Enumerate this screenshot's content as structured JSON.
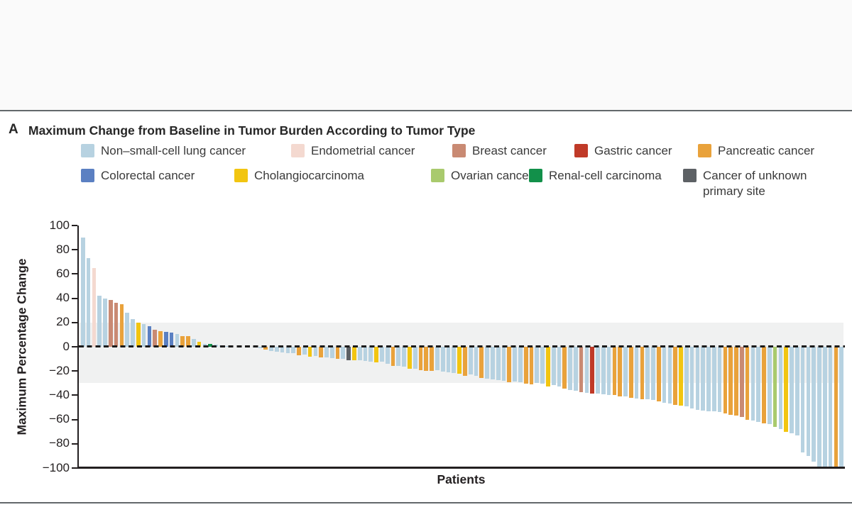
{
  "panel": {
    "label": "A",
    "title": "Maximum Change from Baseline in Tumor Burden According to Tumor Type"
  },
  "chart_data": {
    "type": "bar",
    "subtype": "waterfall",
    "title": "Maximum Change from Baseline in Tumor Burden According to Tumor Type",
    "xlabel": "Patients",
    "ylabel": "Maximum Percentage Change",
    "ylim": [
      -100,
      100
    ],
    "ytick_values": [
      100,
      80,
      60,
      40,
      20,
      0,
      -20,
      -40,
      -60,
      -80,
      -100
    ],
    "ytick_labels": [
      "100",
      "80",
      "60",
      "40",
      "20",
      "0",
      "−20",
      "−40",
      "−60",
      "−80",
      "−100"
    ],
    "zero_line_style": "dashed",
    "reference_band": {
      "from": 20,
      "to": -30,
      "color": "#f0f1f1"
    },
    "legend_position": "top",
    "grid": false,
    "categories": [
      {
        "key": "L",
        "label": "Non–small-cell lung cancer",
        "color": "#b7d2e1"
      },
      {
        "key": "E",
        "label": "Endometrial cancer",
        "color": "#f4d9d0"
      },
      {
        "key": "B",
        "label": "Breast cancer",
        "color": "#c98a73"
      },
      {
        "key": "G",
        "label": "Gastric cancer",
        "color": "#c03a28"
      },
      {
        "key": "P",
        "label": "Pancreatic cancer",
        "color": "#e9a23b"
      },
      {
        "key": "C",
        "label": "Colorectal cancer",
        "color": "#5b80c2"
      },
      {
        "key": "H",
        "label": "Cholangiocarcinoma",
        "color": "#f2c511"
      },
      {
        "key": "O",
        "label": "Ovarian cancer",
        "color": "#a9ca6d"
      },
      {
        "key": "R",
        "label": "Renal-cell carcinoma",
        "color": "#12904a"
      },
      {
        "key": "U",
        "label": "Cancer of unknown primary site",
        "color": "#5d6165"
      }
    ],
    "bars": [
      [
        "L",
        90
      ],
      [
        "L",
        73
      ],
      [
        "E",
        65
      ],
      [
        "L",
        42
      ],
      [
        "L",
        40
      ],
      [
        "B",
        38.5
      ],
      [
        "B",
        36
      ],
      [
        "P",
        35
      ],
      [
        "L",
        28
      ],
      [
        "L",
        23
      ],
      [
        "H",
        20
      ],
      [
        "L",
        18.5
      ],
      [
        "C",
        17
      ],
      [
        "B",
        14
      ],
      [
        "P",
        13
      ],
      [
        "C",
        12.5
      ],
      [
        "C",
        11.5
      ],
      [
        "L",
        10.5
      ],
      [
        "P",
        9
      ],
      [
        "P",
        8.5
      ],
      [
        "L",
        6.5
      ],
      [
        "H",
        4
      ],
      [
        "L",
        2.5
      ],
      [
        "R",
        2.5
      ],
      [
        "L",
        2
      ],
      [
        "L",
        1
      ],
      [
        "L",
        0.5
      ],
      [
        "L",
        0
      ],
      [
        "L",
        0
      ],
      [
        "L",
        0
      ],
      [
        "L",
        0
      ],
      [
        "L",
        -0.5
      ],
      [
        "L",
        -1
      ],
      [
        "P",
        -2.5
      ],
      [
        "L",
        -3.5
      ],
      [
        "L",
        -4
      ],
      [
        "L",
        -4.5
      ],
      [
        "L",
        -5
      ],
      [
        "L",
        -5.5
      ],
      [
        "P",
        -7
      ],
      [
        "L",
        -6.5
      ],
      [
        "H",
        -8
      ],
      [
        "L",
        -7.5
      ],
      [
        "P",
        -9
      ],
      [
        "L",
        -9
      ],
      [
        "L",
        -9.5
      ],
      [
        "P",
        -10
      ],
      [
        "L",
        -10
      ],
      [
        "U",
        -11
      ],
      [
        "H",
        -11
      ],
      [
        "L",
        -11
      ],
      [
        "L",
        -11.5
      ],
      [
        "L",
        -12
      ],
      [
        "H",
        -13
      ],
      [
        "L",
        -12.5
      ],
      [
        "L",
        -14
      ],
      [
        "P",
        -16
      ],
      [
        "L",
        -15.5
      ],
      [
        "L",
        -16.5
      ],
      [
        "H",
        -18
      ],
      [
        "L",
        -18
      ],
      [
        "P",
        -19.5
      ],
      [
        "P",
        -20
      ],
      [
        "P",
        -20
      ],
      [
        "L",
        -19.5
      ],
      [
        "L",
        -20.5
      ],
      [
        "L",
        -21
      ],
      [
        "L",
        -21.5
      ],
      [
        "H",
        -22
      ],
      [
        "P",
        -24
      ],
      [
        "L",
        -23
      ],
      [
        "L",
        -24
      ],
      [
        "P",
        -25.5
      ],
      [
        "L",
        -26.5
      ],
      [
        "L",
        -27
      ],
      [
        "L",
        -27.5
      ],
      [
        "L",
        -28
      ],
      [
        "P",
        -29.5
      ],
      [
        "L",
        -28.5
      ],
      [
        "L",
        -29.5
      ],
      [
        "P",
        -30.5
      ],
      [
        "P",
        -31
      ],
      [
        "L",
        -30
      ],
      [
        "L",
        -30.5
      ],
      [
        "H",
        -32.5
      ],
      [
        "L",
        -31.5
      ],
      [
        "L",
        -32.5
      ],
      [
        "P",
        -34.5
      ],
      [
        "L",
        -35.5
      ],
      [
        "L",
        -36.5
      ],
      [
        "B",
        -37.5
      ],
      [
        "L",
        -38
      ],
      [
        "G",
        -38.5
      ],
      [
        "L",
        -38.5
      ],
      [
        "L",
        -39
      ],
      [
        "L",
        -39.5
      ],
      [
        "P",
        -40
      ],
      [
        "P",
        -41
      ],
      [
        "L",
        -41
      ],
      [
        "P",
        -42
      ],
      [
        "L",
        -42.5
      ],
      [
        "P",
        -43
      ],
      [
        "L",
        -43.5
      ],
      [
        "L",
        -44
      ],
      [
        "P",
        -45
      ],
      [
        "L",
        -46
      ],
      [
        "L",
        -47
      ],
      [
        "P",
        -48
      ],
      [
        "H",
        -48.5
      ],
      [
        "L",
        -49
      ],
      [
        "L",
        -51
      ],
      [
        "L",
        -52
      ],
      [
        "L",
        -52.5
      ],
      [
        "L",
        -53
      ],
      [
        "L",
        -53.5
      ],
      [
        "L",
        -54
      ],
      [
        "P",
        -55
      ],
      [
        "P",
        -56
      ],
      [
        "P",
        -57
      ],
      [
        "B",
        -58
      ],
      [
        "P",
        -60
      ],
      [
        "L",
        -61
      ],
      [
        "L",
        -62
      ],
      [
        "P",
        -63
      ],
      [
        "L",
        -64
      ],
      [
        "O",
        -66
      ],
      [
        "L",
        -68
      ],
      [
        "H",
        -70
      ],
      [
        "L",
        -71.5
      ],
      [
        "L",
        -73
      ],
      [
        "L",
        -87
      ],
      [
        "L",
        -90
      ],
      [
        "L",
        -95
      ],
      [
        "L",
        -100
      ],
      [
        "L",
        -100
      ],
      [
        "L",
        -100
      ],
      [
        "P",
        -100
      ],
      [
        "L",
        -100
      ]
    ]
  }
}
